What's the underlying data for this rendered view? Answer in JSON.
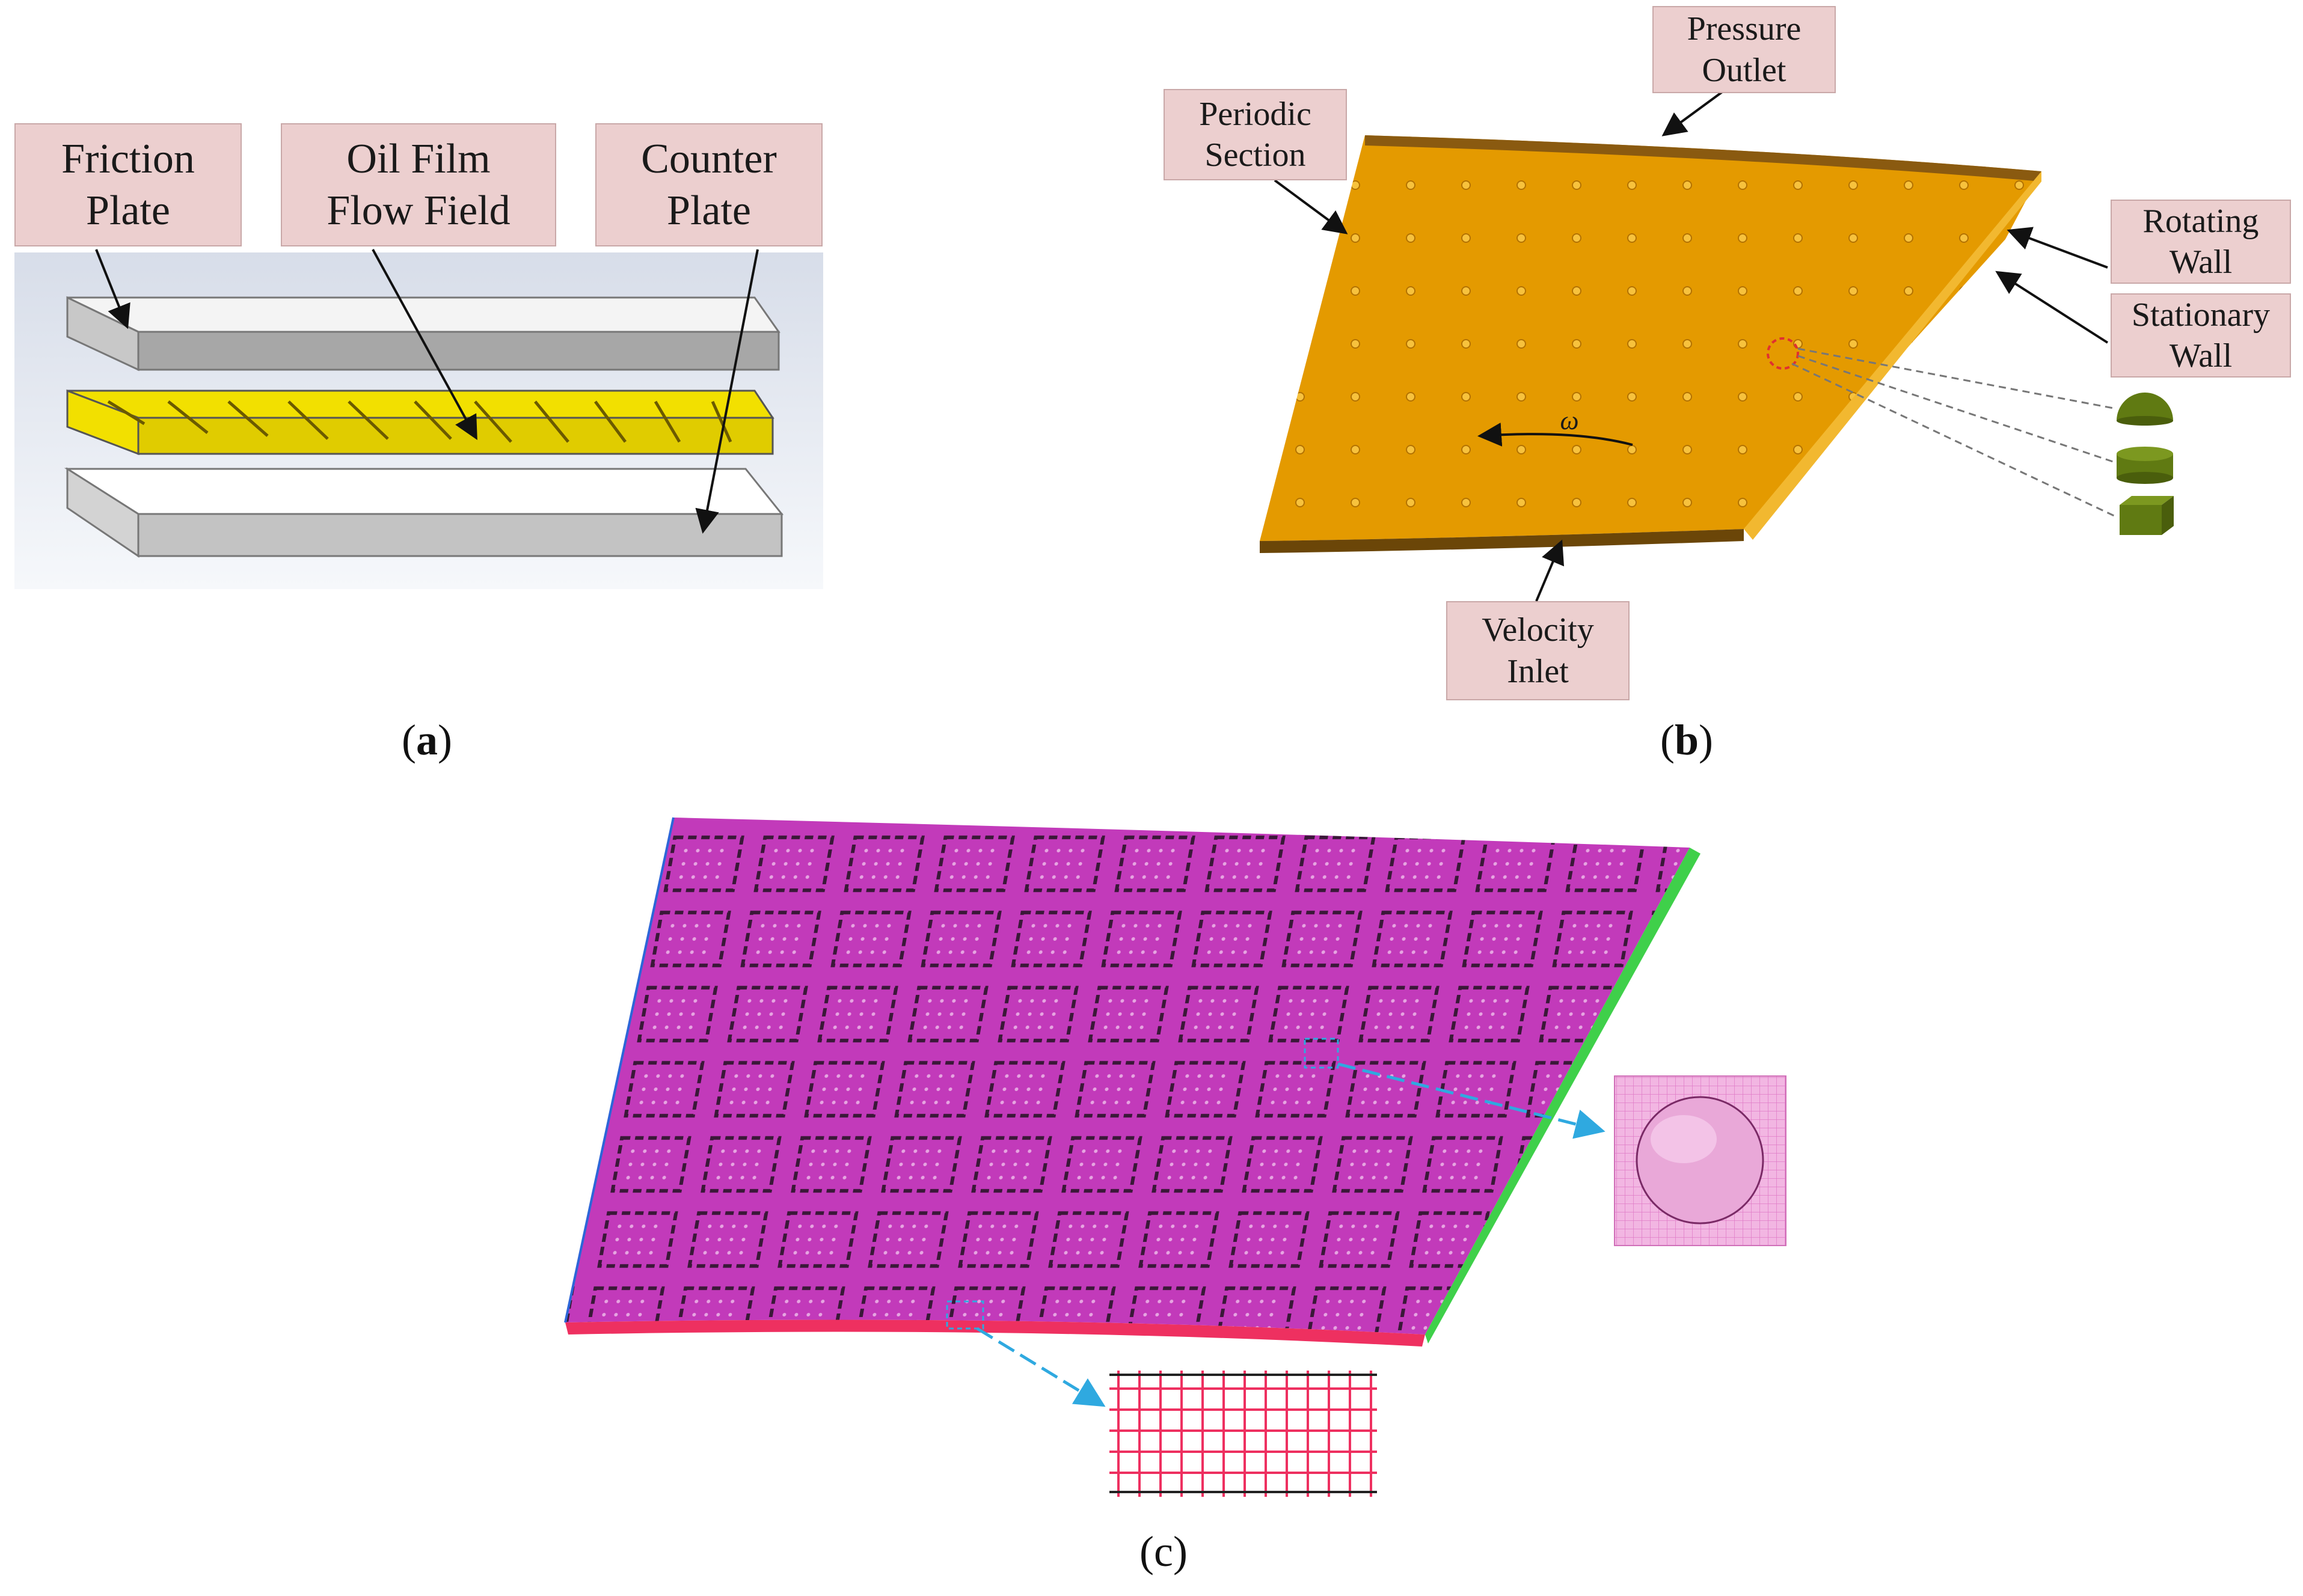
{
  "panel_a": {
    "caption": "a",
    "labels": {
      "friction_plate": [
        "Friction",
        "Plate"
      ],
      "oil_film": [
        "Oil Film",
        "Flow Field"
      ],
      "counter_plate": [
        "Counter",
        "Plate"
      ]
    }
  },
  "panel_b": {
    "caption": "b",
    "omega_symbol": "ω",
    "labels": {
      "pressure_outlet": [
        "Pressure",
        "Outlet"
      ],
      "periodic_section": [
        "Periodic",
        "Section"
      ],
      "rotating_wall": [
        "Rotating",
        "Wall"
      ],
      "stationary_wall": [
        "Stationary",
        "Wall"
      ],
      "velocity_inlet": [
        "Velocity",
        "Inlet"
      ]
    }
  },
  "panel_c": {
    "caption": "(c)"
  },
  "colors": {
    "label_fill": "#eccfcf",
    "oil_film_yellow": "#f2e000",
    "plate_orange": "#e49a00",
    "mesh_magenta": "#c23aba",
    "inlet_red": "#ee3060",
    "outlet_green": "#3fd04a",
    "texture_olive": "#607a12",
    "arrow_blue": "#2fa9e0"
  }
}
